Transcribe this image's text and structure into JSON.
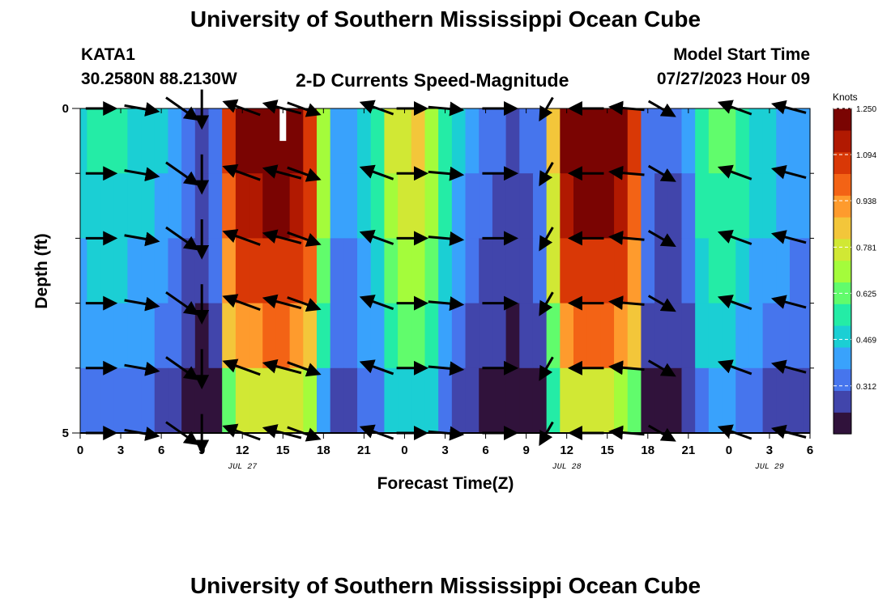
{
  "page": {
    "title_top": "University of Southern Mississippi Ocean Cube",
    "title_bottom": "University of Southern Mississippi Ocean Cube",
    "station_id": "KATA1",
    "station_coords": "30.2580N  88.2130W",
    "plot_title": "2-D Currents Speed-Magnitude",
    "model_start_label": "Model Start Time",
    "model_start_value": "07/27/2023 Hour 09"
  },
  "chart_data": {
    "type": "heatmap",
    "title": "2-D Currents Speed-Magnitude",
    "xlabel": "Forecast Time(Z)",
    "ylabel": "Depth (ft)",
    "x_ticks": [
      "0",
      "3",
      "6",
      "9",
      "12",
      "15",
      "18",
      "21",
      "0",
      "3",
      "6",
      "9",
      "12",
      "15",
      "18",
      "21",
      "0",
      "3",
      "6"
    ],
    "x_range_hours": [
      0,
      54
    ],
    "date_labels": [
      {
        "text": "JUL 27",
        "hour": 12
      },
      {
        "text": "JUL 28",
        "hour": 36
      },
      {
        "text": "JUL 29",
        "hour": 51
      }
    ],
    "y_ticks": [
      "0",
      "5"
    ],
    "ylim_ft": [
      0,
      5
    ],
    "colorbar": {
      "unit": "Knots",
      "ticks": [
        "1.250",
        "1.094",
        "0.938",
        "0.781",
        "0.625",
        "0.469",
        "0.312"
      ],
      "range": [
        0.15,
        1.25
      ],
      "colors": [
        "#30123b",
        "#4145ab",
        "#4675ed",
        "#39a2fc",
        "#1bcfd4",
        "#24eca6",
        "#61fc6c",
        "#a4fc3b",
        "#d1e834",
        "#f3c63a",
        "#fe9b2d",
        "#f36315",
        "#d93806",
        "#b11901",
        "#7a0402"
      ]
    },
    "depth_rows_ft": [
      0.5,
      1.5,
      2.5,
      3.5,
      4.5
    ],
    "time_hours": [
      0,
      1,
      2,
      3,
      4,
      5,
      6,
      7,
      8,
      9,
      10,
      11,
      12,
      13,
      14,
      15,
      16,
      17,
      18,
      19,
      20,
      21,
      22,
      23,
      24,
      25,
      26,
      27,
      28,
      29,
      30,
      31,
      32,
      33,
      34,
      35,
      36,
      37,
      38,
      39,
      40,
      41,
      42,
      43,
      44,
      45,
      46,
      47,
      48,
      49,
      50,
      51,
      52,
      53,
      54
    ],
    "surface_speed_kn": [
      0.5,
      0.52,
      0.53,
      0.52,
      0.5,
      0.48,
      0.45,
      0.4,
      0.32,
      0.27,
      0.35,
      1.05,
      1.2,
      1.22,
      1.24,
      1.25,
      1.2,
      1.1,
      0.7,
      0.42,
      0.4,
      0.5,
      0.55,
      0.75,
      0.78,
      0.82,
      0.72,
      0.55,
      0.45,
      0.38,
      0.32,
      0.3,
      0.28,
      0.3,
      0.36,
      0.85,
      1.2,
      1.24,
      1.25,
      1.24,
      1.18,
      1.05,
      0.35,
      0.3,
      0.3,
      0.38,
      0.58,
      0.62,
      0.6,
      0.55,
      0.5,
      0.47,
      0.44,
      0.42,
      0.41
    ],
    "depth_factor": [
      1.0,
      0.95,
      0.88,
      0.78,
      0.62
    ],
    "white_marker": {
      "hour": 15,
      "depth_ft": [
        0,
        0.5
      ]
    },
    "vectors": {
      "hours": [
        1.5,
        4.5,
        7.5,
        9,
        12,
        15,
        16.5,
        22,
        24.5,
        27,
        31,
        34.5,
        37.5,
        40.5,
        43,
        48.5,
        52.5
      ],
      "depth_rows_ft": [
        0,
        1,
        2,
        3,
        4,
        5
      ],
      "dirs_deg": [
        0,
        10,
        35,
        90,
        200,
        195,
        20,
        200,
        0,
        5,
        0,
        120,
        180,
        185,
        30,
        200,
        195
      ],
      "length_rel": [
        0.7,
        0.8,
        0.9,
        0.9,
        0.9,
        0.9,
        0.8,
        0.8,
        0.7,
        0.8,
        0.8,
        0.6,
        0.8,
        0.8,
        0.7,
        0.8,
        0.8
      ]
    }
  }
}
